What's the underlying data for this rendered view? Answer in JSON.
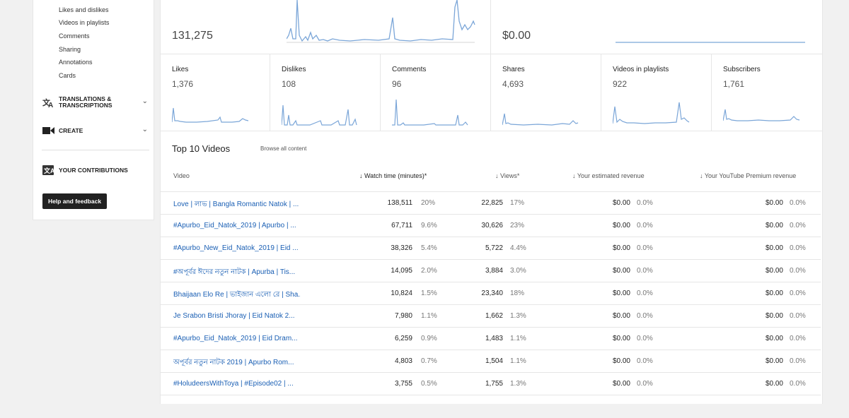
{
  "sidebar": {
    "sub_items": [
      "Likes and dislikes",
      "Videos in playlists",
      "Comments",
      "Sharing",
      "Annotations",
      "Cards"
    ],
    "translations_label": "TRANSLATIONS & TRANSCRIPTIONS",
    "create_label": "CREATE",
    "contributions_label": "YOUR CONTRIBUTIONS",
    "help_label": "Help and feedback"
  },
  "top_cards": {
    "views_value": "131,275",
    "revenue_value": "$0.00"
  },
  "metrics": [
    {
      "label": "Likes",
      "value": "1,376"
    },
    {
      "label": "Dislikes",
      "value": "108"
    },
    {
      "label": "Comments",
      "value": "96"
    },
    {
      "label": "Shares",
      "value": "4,693"
    },
    {
      "label": "Videos in playlists",
      "value": "922"
    },
    {
      "label": "Subscribers",
      "value": "1,761"
    }
  ],
  "top_videos": {
    "title": "Top 10 Videos",
    "browse_label": "Browse all content",
    "headers": {
      "video": "Video",
      "watch_time": "Watch time (minutes)*",
      "views": "Views*",
      "revenue": "Your estimated revenue",
      "premium": "Your YouTube Premium revenue"
    },
    "rows": [
      {
        "title": "Love | লাভ | Bangla Romantic Natok | ...",
        "watch": "138,511",
        "watch_pct": "20%",
        "views": "22,825",
        "views_pct": "17%",
        "rev": "$0.00",
        "rev_pct": "0.0%",
        "prem": "$0.00",
        "prem_pct": "0.0%"
      },
      {
        "title": "#Apurbo_Eid_Natok_2019 | Apurbo | ...",
        "watch": "67,711",
        "watch_pct": "9.6%",
        "views": "30,626",
        "views_pct": "23%",
        "rev": "$0.00",
        "rev_pct": "0.0%",
        "prem": "$0.00",
        "prem_pct": "0.0%"
      },
      {
        "title": "#Apurbo_New_Eid_Natok_2019 | Eid ...",
        "watch": "38,326",
        "watch_pct": "5.4%",
        "views": "5,722",
        "views_pct": "4.4%",
        "rev": "$0.00",
        "rev_pct": "0.0%",
        "prem": "$0.00",
        "prem_pct": "0.0%"
      },
      {
        "title": "#অপূর্বর ঈদের নতুন নাটক | Apurba | Tis...",
        "watch": "14,095",
        "watch_pct": "2.0%",
        "views": "3,884",
        "views_pct": "3.0%",
        "rev": "$0.00",
        "rev_pct": "0.0%",
        "prem": "$0.00",
        "prem_pct": "0.0%"
      },
      {
        "title": "Bhaijaan Elo Re | ভাইজান এলো রে | Sha...",
        "watch": "10,824",
        "watch_pct": "1.5%",
        "views": "23,340",
        "views_pct": "18%",
        "rev": "$0.00",
        "rev_pct": "0.0%",
        "prem": "$0.00",
        "prem_pct": "0.0%"
      },
      {
        "title": "Je Srabon Bristi Jhoray | Eid Natok 2...",
        "watch": "7,980",
        "watch_pct": "1.1%",
        "views": "1,662",
        "views_pct": "1.3%",
        "rev": "$0.00",
        "rev_pct": "0.0%",
        "prem": "$0.00",
        "prem_pct": "0.0%"
      },
      {
        "title": "#Apurbo_Eid_Natok_2019 | Eid Dram...",
        "watch": "6,259",
        "watch_pct": "0.9%",
        "views": "1,483",
        "views_pct": "1.1%",
        "rev": "$0.00",
        "rev_pct": "0.0%",
        "prem": "$0.00",
        "prem_pct": "0.0%"
      },
      {
        "title": "অপূর্বর নতুন নাটক 2019 | Apurbo Rom...",
        "watch": "4,803",
        "watch_pct": "0.7%",
        "views": "1,504",
        "views_pct": "1.1%",
        "rev": "$0.00",
        "rev_pct": "0.0%",
        "prem": "$0.00",
        "prem_pct": "0.0%"
      },
      {
        "title": "#HoludeersWithToya | #Episode02 | ...",
        "watch": "3,755",
        "watch_pct": "0.5%",
        "views": "1,755",
        "views_pct": "1.3%",
        "rev": "$0.00",
        "rev_pct": "0.0%",
        "prem": "$0.00",
        "prem_pct": "0.0%"
      }
    ]
  },
  "colors": {
    "sparkline": "#7ba6d8",
    "link": "#1a5fb4",
    "button_bg": "#212121"
  }
}
